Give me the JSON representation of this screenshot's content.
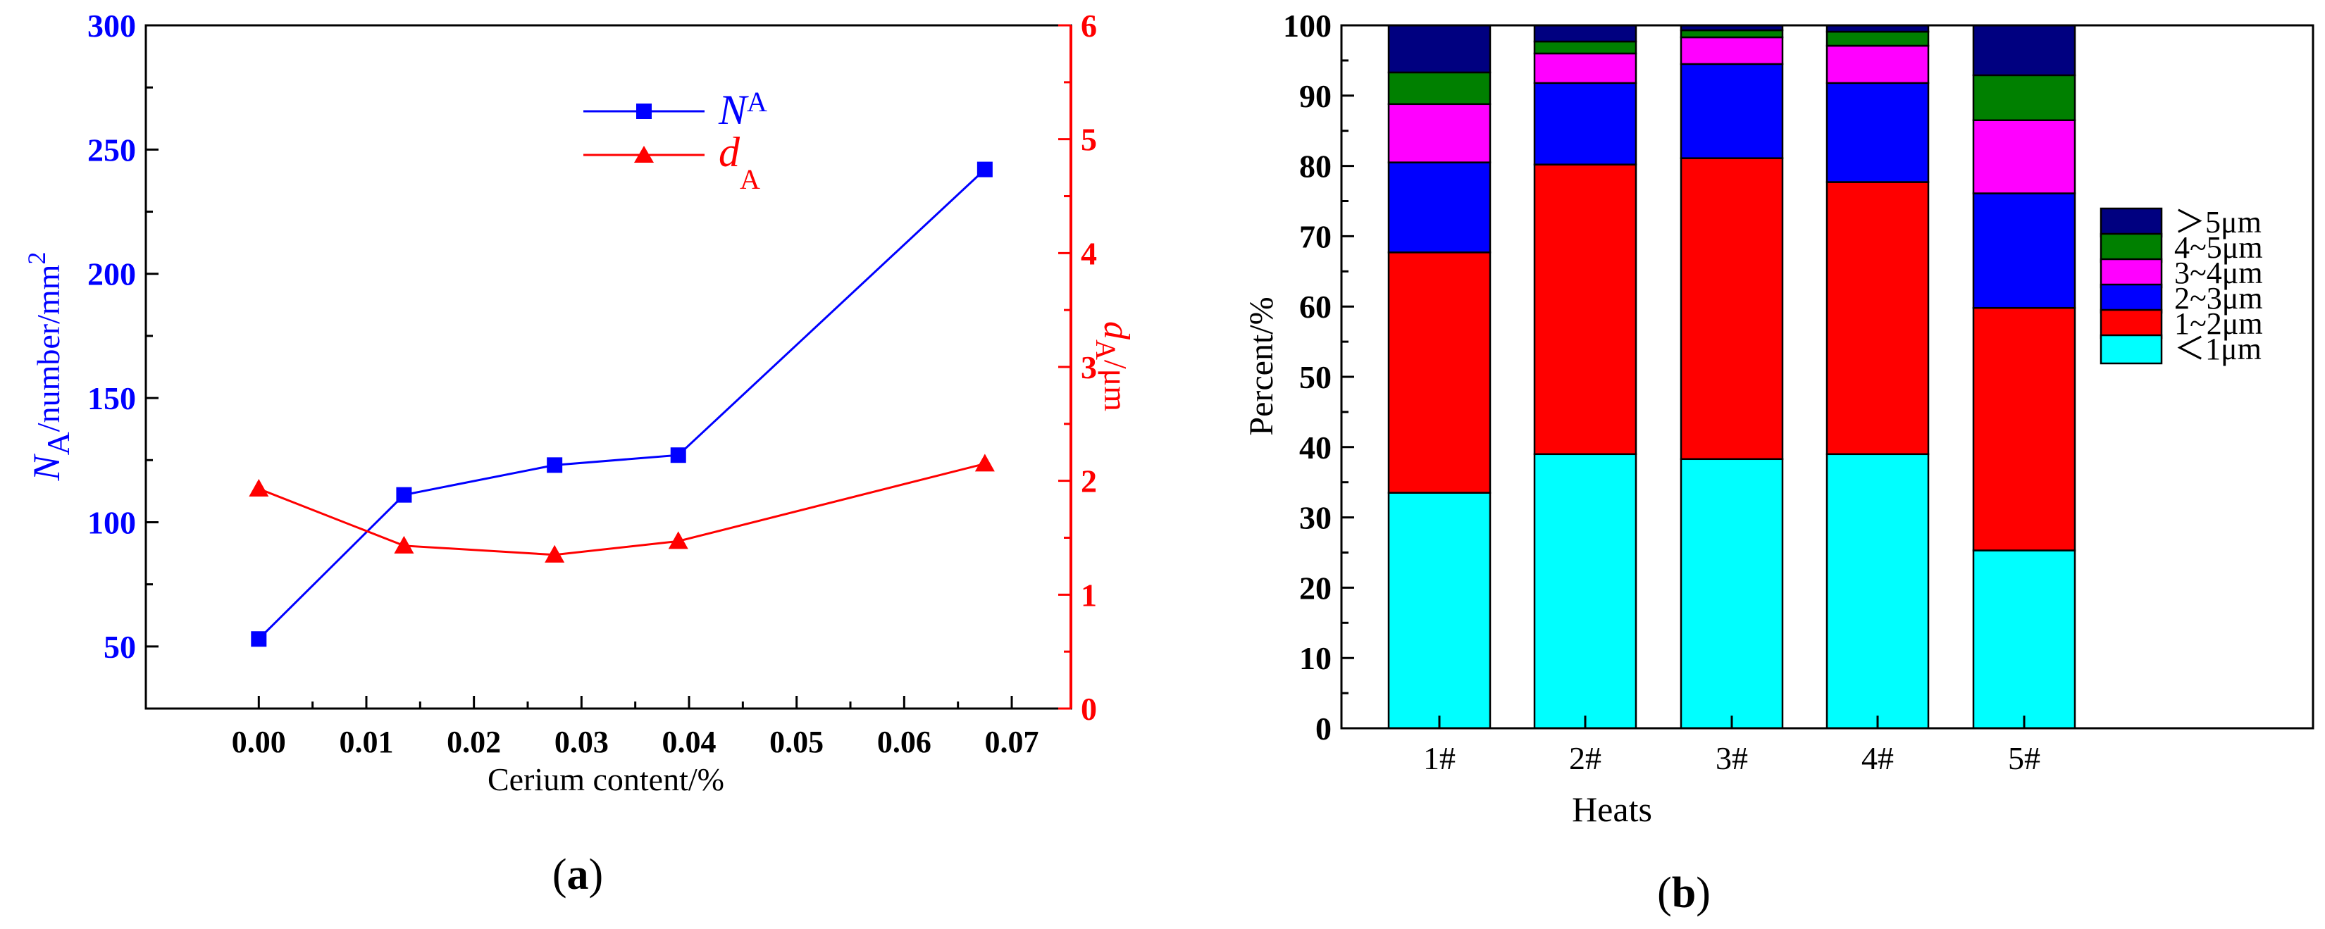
{
  "chart_data": [
    {
      "type": "line",
      "panel_label": "a",
      "xlabel": "Cerium content/%",
      "ylabel_left": {
        "base": "N",
        "sub": "A",
        "rest": "/number/mm",
        "sup": "2"
      },
      "ylabel_right": {
        "base": "d",
        "sub": "A",
        "rest": "/μm"
      },
      "xlim": [
        -0.0105,
        0.0755
      ],
      "ylim_left": [
        25,
        300
      ],
      "ylim_right": [
        0,
        6
      ],
      "x_ticks": [
        "0.00",
        "0.01",
        "0.02",
        "0.03",
        "0.04",
        "0.05",
        "0.06",
        "0.07"
      ],
      "y_ticks_left": [
        "50",
        "100",
        "150",
        "200",
        "250",
        "300"
      ],
      "y_ticks_right": [
        "0",
        "1",
        "2",
        "3",
        "4",
        "5",
        "6"
      ],
      "series": [
        {
          "name": "NA",
          "label_base": "N",
          "label_sub": "A",
          "axis": "left",
          "color": "#0000ff",
          "marker": "square",
          "x": [
            0.0,
            0.0135,
            0.0275,
            0.039,
            0.0675
          ],
          "y": [
            53,
            111,
            123,
            127,
            242
          ]
        },
        {
          "name": "dA",
          "label_base": "d",
          "label_sub": "A",
          "axis": "right",
          "color": "#ff0000",
          "marker": "triangle",
          "x": [
            0.0,
            0.0135,
            0.0275,
            0.039,
            0.0675
          ],
          "y": [
            1.93,
            1.43,
            1.35,
            1.47,
            2.15
          ]
        }
      ]
    },
    {
      "type": "bar",
      "stacked": true,
      "panel_label": "b",
      "xlabel": "Heats",
      "ylabel": "Percent/%",
      "ylim": [
        0,
        100
      ],
      "y_ticks": [
        "0",
        "10",
        "20",
        "30",
        "40",
        "50",
        "60",
        "70",
        "80",
        "90",
        "100"
      ],
      "categories": [
        "1#",
        "2#",
        "3#",
        "4#",
        "5#"
      ],
      "legend_position": "right",
      "series": [
        {
          "name": "<1μm",
          "label": "＜1μm",
          "color": "#00ffff",
          "values": [
            33.5,
            39.0,
            38.3,
            39.0,
            25.3
          ]
        },
        {
          "name": "1~2μm",
          "label": "1~2μm",
          "color": "#ff0000",
          "values": [
            34.2,
            41.2,
            42.8,
            38.7,
            34.5
          ]
        },
        {
          "name": "2~3μm",
          "label": "2~3μm",
          "color": "#0000ff",
          "values": [
            12.8,
            11.6,
            13.4,
            14.1,
            16.3
          ]
        },
        {
          "name": "3~4μm",
          "label": "3~4μm",
          "color": "#ff00ff",
          "values": [
            8.3,
            4.2,
            3.8,
            5.3,
            10.4
          ]
        },
        {
          "name": "4~5μm",
          "label": "4~5μm",
          "color": "#008000",
          "values": [
            4.5,
            1.7,
            1.0,
            2.0,
            6.4
          ]
        },
        {
          "name": ">5μm",
          "label": "＞5μm",
          "color": "#000080",
          "values": [
            6.7,
            2.3,
            0.7,
            0.9,
            7.1
          ]
        }
      ]
    }
  ]
}
